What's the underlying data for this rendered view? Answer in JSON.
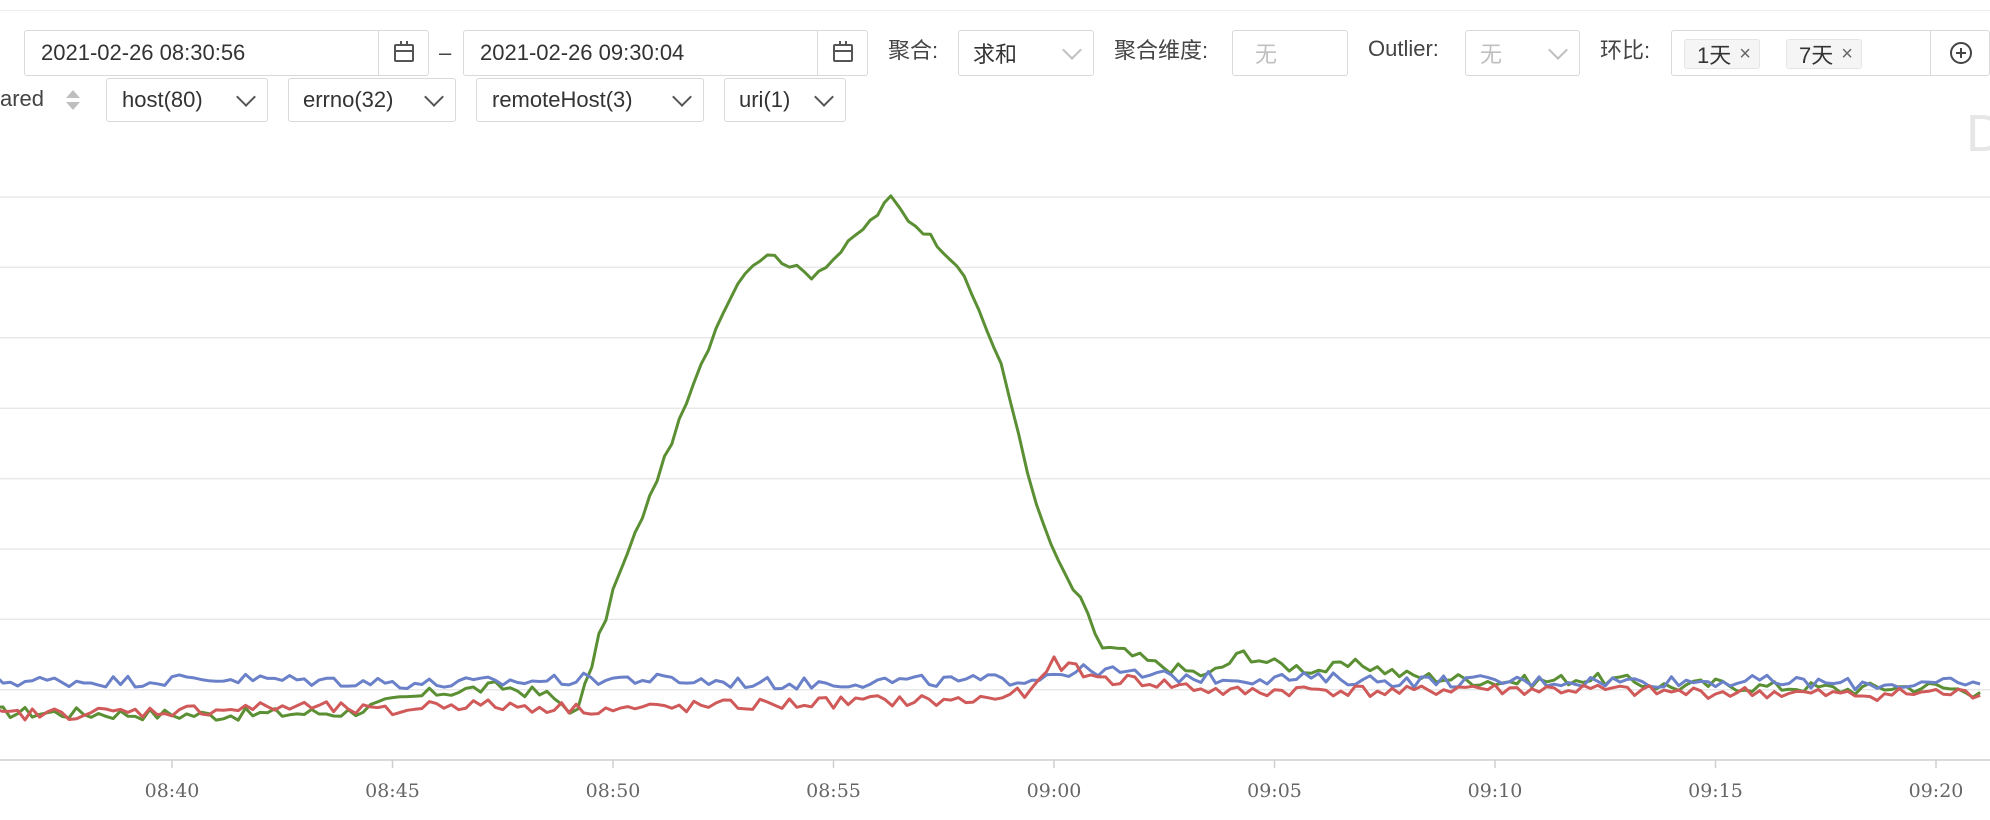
{
  "toolbar": {
    "start_time": "2021-02-26 08:30:56",
    "range_separator": "–",
    "end_time": "2021-02-26 09:30:04",
    "aggregate_label": "聚合:",
    "aggregate_value": "求和",
    "agg_dimension_label": "聚合维度:",
    "agg_dimension_placeholder": "无",
    "outlier_label": "Outlier:",
    "outlier_placeholder": "无",
    "compare_label": "环比:",
    "compare_tags": [
      "1天",
      "7天"
    ],
    "tag_close": "×"
  },
  "filters": {
    "compared_label": "ared",
    "host": "host(80)",
    "errno": "errno(32)",
    "remote_host": "remoteHost(3)",
    "uri": "uri(1)"
  },
  "corner_letter": "D",
  "colors": {
    "green": "#5b8f33",
    "blue": "#6a80c8",
    "red": "#d05a5a",
    "grid": "#e8e8e8",
    "axis": "#cfcfcf"
  },
  "chart_data": {
    "type": "line",
    "x_ticks": [
      "08:40",
      "08:45",
      "08:50",
      "08:55",
      "09:00",
      "09:05",
      "09:10",
      "09:15",
      "09:20"
    ],
    "x_range": [
      "08:36",
      "09:21"
    ],
    "y_gridlines": 8,
    "y_tick_labels_visible": false,
    "series": [
      {
        "color": "green",
        "values": [
          [
            0,
            0.085
          ],
          [
            5,
            0.08
          ],
          [
            8,
            0.085
          ],
          [
            10,
            0.12
          ],
          [
            11.5,
            0.13
          ],
          [
            12.5,
            0.115
          ],
          [
            13.2,
            0.085
          ],
          [
            14,
            0.3
          ],
          [
            14.5,
            0.4
          ],
          [
            15,
            0.5
          ],
          [
            15.5,
            0.6
          ],
          [
            16,
            0.7
          ],
          [
            16.5,
            0.8
          ],
          [
            17,
            0.87
          ],
          [
            17.5,
            0.9
          ],
          [
            18,
            0.88
          ],
          [
            18.5,
            0.86
          ],
          [
            19,
            0.89
          ],
          [
            19.5,
            0.93
          ],
          [
            20,
            0.97
          ],
          [
            20.3,
            1.0
          ],
          [
            20.7,
            0.96
          ],
          [
            21.2,
            0.93
          ],
          [
            21.8,
            0.88
          ],
          [
            22.3,
            0.8
          ],
          [
            22.8,
            0.7
          ],
          [
            23.2,
            0.58
          ],
          [
            23.6,
            0.45
          ],
          [
            24.1,
            0.35
          ],
          [
            24.6,
            0.28
          ],
          [
            25.1,
            0.2
          ],
          [
            25.6,
            0.19
          ],
          [
            26.3,
            0.17
          ],
          [
            27.5,
            0.15
          ],
          [
            28.3,
            0.19
          ],
          [
            29,
            0.17
          ],
          [
            30,
            0.16
          ],
          [
            31,
            0.17
          ],
          [
            32,
            0.15
          ],
          [
            33,
            0.145
          ],
          [
            34,
            0.14
          ],
          [
            35,
            0.14
          ],
          [
            36,
            0.145
          ],
          [
            37,
            0.14
          ],
          [
            38,
            0.13
          ],
          [
            39,
            0.135
          ],
          [
            40,
            0.13
          ],
          [
            41,
            0.13
          ],
          [
            42,
            0.125
          ],
          [
            43,
            0.13
          ],
          [
            44,
            0.13
          ],
          [
            45,
            0.12
          ]
        ]
      },
      {
        "color": "blue",
        "values": [
          [
            0,
            0.14
          ],
          [
            3,
            0.14
          ],
          [
            5,
            0.145
          ],
          [
            8,
            0.14
          ],
          [
            10,
            0.135
          ],
          [
            12,
            0.14
          ],
          [
            14,
            0.145
          ],
          [
            16,
            0.14
          ],
          [
            18,
            0.135
          ],
          [
            20,
            0.14
          ],
          [
            22,
            0.14
          ],
          [
            23.5,
            0.145
          ],
          [
            24,
            0.155
          ],
          [
            25,
            0.16
          ],
          [
            26,
            0.15
          ],
          [
            28,
            0.145
          ],
          [
            30,
            0.145
          ],
          [
            32,
            0.14
          ],
          [
            34,
            0.14
          ],
          [
            36,
            0.14
          ],
          [
            38,
            0.14
          ],
          [
            40,
            0.14
          ],
          [
            42,
            0.135
          ],
          [
            44,
            0.135
          ],
          [
            45,
            0.135
          ]
        ]
      },
      {
        "color": "red",
        "values": [
          [
            0,
            0.08
          ],
          [
            3,
            0.085
          ],
          [
            5,
            0.09
          ],
          [
            7,
            0.095
          ],
          [
            9,
            0.085
          ],
          [
            10,
            0.1
          ],
          [
            12,
            0.095
          ],
          [
            14,
            0.09
          ],
          [
            16,
            0.095
          ],
          [
            18,
            0.1
          ],
          [
            20,
            0.105
          ],
          [
            22,
            0.105
          ],
          [
            23.5,
            0.12
          ],
          [
            24,
            0.175
          ],
          [
            25,
            0.145
          ],
          [
            26,
            0.14
          ],
          [
            28,
            0.12
          ],
          [
            30,
            0.125
          ],
          [
            32,
            0.12
          ],
          [
            33.5,
            0.13
          ],
          [
            34,
            0.125
          ],
          [
            36,
            0.125
          ],
          [
            38,
            0.12
          ],
          [
            40,
            0.12
          ],
          [
            42,
            0.115
          ],
          [
            44,
            0.12
          ],
          [
            45,
            0.115
          ]
        ]
      }
    ]
  }
}
